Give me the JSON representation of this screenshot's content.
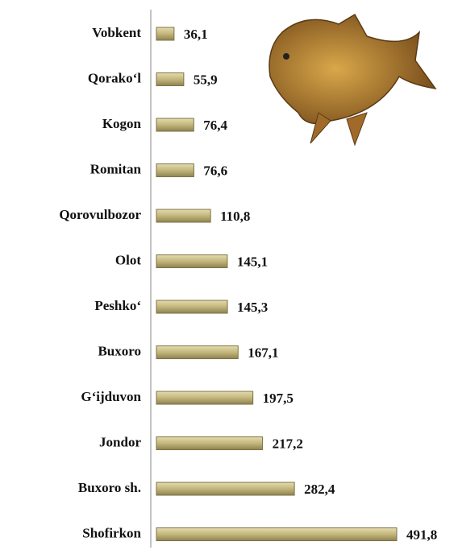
{
  "chart_data": {
    "type": "barh",
    "categories": [
      "Vobkent",
      "Qorako‘l",
      "Kogon",
      "Romitan",
      "Qorovulbozor",
      "Olot",
      "Peshko‘",
      "Buxoro",
      "G‘ijduvon",
      "Jondor",
      "Buxoro sh.",
      "Shofirkon"
    ],
    "values": [
      36.1,
      55.9,
      76.4,
      76.6,
      110.8,
      145.1,
      145.3,
      167.1,
      197.5,
      217.2,
      282.4,
      491.8
    ],
    "value_labels": [
      "36,1",
      "55,9",
      "76,4",
      "76,6",
      "110,8",
      "145,1",
      "145,3",
      "167,1",
      "197,5",
      "217,2",
      "282,4",
      "491,8"
    ],
    "color": "#c9bd85"
  }
}
